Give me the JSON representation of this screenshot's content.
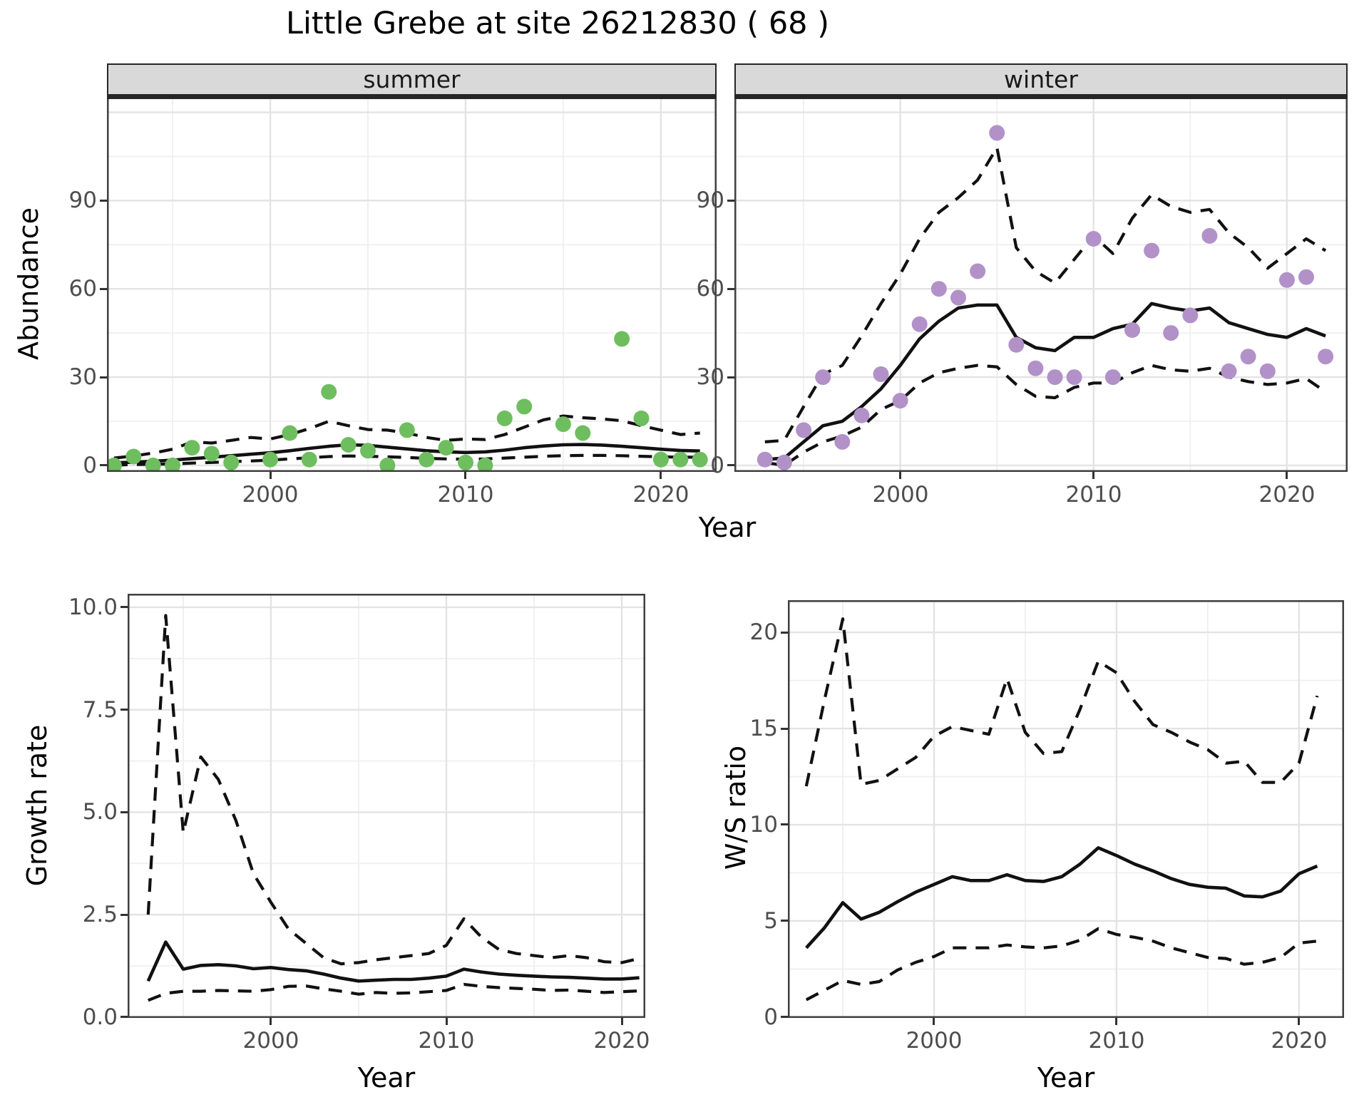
{
  "title": "Little Grebe at site 26212830 ( 68 )",
  "colors": {
    "summer_point": "#6EBE5F",
    "winter_point": "#B291C8",
    "line": "#111111",
    "grid_major": "#E3E3E3",
    "grid_minor": "#EFEFEF",
    "strip_bg": "#D9D9D9",
    "tick_text": "#4D4D4D"
  },
  "chart_data": [
    {
      "id": "abundance-summer",
      "type": "scatter",
      "facet": "summer",
      "xlabel": "Year",
      "ylabel": "Abundance",
      "xlim": [
        1991.64,
        2022.85
      ],
      "ylim": [
        -2.2,
        125.7
      ],
      "x_ticks": [
        {
          "v": 2000,
          "label": "2000"
        },
        {
          "v": 2010,
          "label": "2010"
        },
        {
          "v": 2020,
          "label": "2020"
        }
      ],
      "x_minor": [
        1995,
        2005,
        2015
      ],
      "y_ticks": [
        {
          "v": 0,
          "label": "0"
        },
        {
          "v": 30,
          "label": "30"
        },
        {
          "v": 60,
          "label": "60"
        },
        {
          "v": 90,
          "label": "90"
        }
      ],
      "y_minor": [
        15,
        45,
        75,
        105
      ],
      "y_grid_extra": [
        120
      ],
      "points": {
        "years": [
          1992,
          1993,
          1994,
          1995,
          1996,
          1997,
          1998,
          2000,
          2001,
          2002,
          2003,
          2004,
          2005,
          2006,
          2007,
          2008,
          2009,
          2010,
          2011,
          2012,
          2013,
          2015,
          2016,
          2018,
          2019,
          2020,
          2021,
          2022
        ],
        "values": [
          0,
          3,
          0,
          0,
          6,
          4,
          1,
          2,
          11,
          2,
          25,
          7,
          5,
          0,
          12,
          2,
          6,
          1,
          0,
          16,
          20,
          14,
          11,
          43,
          16,
          2,
          2,
          2
        ]
      },
      "fit": {
        "years": [
          1992,
          1993,
          1994,
          1995,
          1996,
          1997,
          1998,
          1999,
          2000,
          2001,
          2002,
          2003,
          2004,
          2005,
          2006,
          2007,
          2008,
          2009,
          2010,
          2011,
          2012,
          2013,
          2014,
          2015,
          2016,
          2017,
          2018,
          2019,
          2020,
          2021,
          2022
        ],
        "values": [
          0.9,
          1.1,
          1.4,
          1.8,
          2.3,
          2.8,
          3.3,
          3.8,
          4.3,
          5.0,
          5.8,
          6.5,
          7.0,
          6.8,
          6.2,
          5.6,
          5.0,
          4.6,
          4.4,
          4.6,
          5.2,
          6.0,
          6.6,
          7.0,
          7.1,
          6.9,
          6.5,
          6.0,
          5.5,
          5.1,
          4.9
        ]
      },
      "upper": {
        "years": [
          1992,
          1993,
          1994,
          1995,
          1996,
          1997,
          1998,
          1999,
          2000,
          2001,
          2002,
          2003,
          2004,
          2005,
          2006,
          2007,
          2008,
          2009,
          2010,
          2011,
          2012,
          2013,
          2014,
          2015,
          2016,
          2017,
          2018,
          2019,
          2020,
          2021,
          2022
        ],
        "values": [
          2.5,
          3.2,
          4.2,
          5.5,
          8.0,
          7.6,
          8.5,
          9.5,
          9.0,
          10.5,
          12.5,
          15.0,
          13.5,
          12.2,
          12.0,
          11.0,
          9.5,
          8.5,
          9.0,
          8.8,
          10.5,
          13.0,
          15.5,
          16.8,
          16.2,
          15.8,
          15.2,
          13.5,
          12.0,
          10.5,
          11.0
        ]
      },
      "lower": {
        "years": [
          1992,
          1993,
          1994,
          1995,
          1996,
          1997,
          1998,
          1999,
          2000,
          2001,
          2002,
          2003,
          2004,
          2005,
          2006,
          2007,
          2008,
          2009,
          2010,
          2011,
          2012,
          2013,
          2014,
          2015,
          2016,
          2017,
          2018,
          2019,
          2020,
          2021,
          2022
        ],
        "values": [
          0.1,
          0.3,
          0.4,
          0.5,
          0.8,
          1.0,
          1.3,
          1.5,
          1.8,
          2.2,
          2.6,
          3.0,
          3.2,
          3.1,
          2.9,
          2.7,
          2.4,
          2.2,
          2.1,
          2.2,
          2.5,
          2.8,
          3.1,
          3.3,
          3.4,
          3.4,
          3.3,
          3.1,
          2.9,
          2.8,
          2.8
        ]
      },
      "point_color_key": "summer_point"
    },
    {
      "id": "abundance-winter",
      "type": "scatter",
      "facet": "winter",
      "xlabel": "Year",
      "ylabel": "Abundance",
      "xlim": [
        1991.42,
        2023.14
      ],
      "ylim": [
        -2.2,
        125.7
      ],
      "x_ticks": [
        {
          "v": 2000,
          "label": "2000"
        },
        {
          "v": 2010,
          "label": "2010"
        },
        {
          "v": 2020,
          "label": "2020"
        }
      ],
      "x_minor": [
        1995,
        2005,
        2015
      ],
      "y_ticks": [
        {
          "v": 0,
          "label": "0"
        },
        {
          "v": 30,
          "label": "30"
        },
        {
          "v": 60,
          "label": "60"
        },
        {
          "v": 90,
          "label": "90"
        }
      ],
      "y_minor": [
        15,
        45,
        75,
        105
      ],
      "y_grid_extra": [
        120
      ],
      "points": {
        "years": [
          1993,
          1994,
          1995,
          1996,
          1997,
          1998,
          1999,
          2000,
          2001,
          2002,
          2003,
          2004,
          2005,
          2006,
          2007,
          2008,
          2009,
          2010,
          2011,
          2012,
          2013,
          2014,
          2015,
          2016,
          2017,
          2018,
          2019,
          2020,
          2021,
          2022
        ],
        "values": [
          2,
          1,
          12,
          30,
          8,
          17,
          31,
          22,
          48,
          60,
          57,
          66,
          113,
          41,
          33,
          30,
          30,
          77,
          30,
          46,
          73,
          45,
          51,
          78,
          32,
          37,
          32,
          63,
          64,
          37
        ]
      },
      "fit": {
        "years": [
          1993,
          1994,
          1995,
          1996,
          1997,
          1998,
          1999,
          2000,
          2001,
          2002,
          2003,
          2004,
          2005,
          2006,
          2007,
          2008,
          2009,
          2010,
          2011,
          2012,
          2013,
          2014,
          2015,
          2016,
          2017,
          2018,
          2019,
          2020,
          2021,
          2022
        ],
        "values": [
          2,
          2.5,
          8,
          13.5,
          15,
          20,
          26,
          34,
          43,
          49,
          53.5,
          54.5,
          54.5,
          43.5,
          40,
          39,
          43.5,
          43.5,
          46.5,
          48,
          55,
          53.5,
          52.5,
          53.5,
          48.5,
          46.5,
          44.5,
          43.5,
          46.5,
          44
        ]
      },
      "upper": {
        "years": [
          1993,
          1994,
          1995,
          1996,
          1997,
          1998,
          1999,
          2000,
          2001,
          2002,
          2003,
          2004,
          2005,
          2006,
          2007,
          2008,
          2009,
          2010,
          2011,
          2012,
          2013,
          2014,
          2015,
          2016,
          2017,
          2018,
          2019,
          2020,
          2021,
          2022
        ],
        "values": [
          8,
          8.5,
          20,
          31,
          34,
          44,
          55,
          65,
          77,
          86,
          91,
          97,
          108,
          74,
          66,
          62,
          70,
          78,
          72,
          84,
          92,
          88,
          86,
          87,
          79,
          74,
          67,
          72,
          77,
          73
        ]
      },
      "lower": {
        "years": [
          1993,
          1994,
          1995,
          1996,
          1997,
          1998,
          1999,
          2000,
          2001,
          2002,
          2003,
          2004,
          2005,
          2006,
          2007,
          2008,
          2009,
          2010,
          2011,
          2012,
          2013,
          2014,
          2015,
          2016,
          2017,
          2018,
          2019,
          2020,
          2021,
          2022
        ],
        "values": [
          1,
          0,
          4.5,
          8,
          10,
          13,
          19,
          22,
          28,
          31.5,
          33,
          34,
          33.5,
          27.5,
          23.5,
          23,
          26.5,
          28,
          28,
          31.5,
          34,
          32.5,
          32,
          33,
          30,
          28.5,
          27.5,
          28,
          29.5,
          25
        ]
      },
      "point_color_key": "winter_point"
    },
    {
      "id": "growth-rate",
      "type": "line",
      "facet": null,
      "xlabel": "Year",
      "ylabel": "Growth rate",
      "xlim": [
        1991.83,
        2021.34
      ],
      "ylim": [
        -0.02,
        10.33
      ],
      "x_ticks": [
        {
          "v": 2000,
          "label": "2000"
        },
        {
          "v": 2010,
          "label": "2010"
        },
        {
          "v": 2020,
          "label": "2020"
        }
      ],
      "x_minor": [
        1995,
        2005,
        2015
      ],
      "y_ticks": [
        {
          "v": 0,
          "label": "0.0"
        },
        {
          "v": 2.5,
          "label": "2.5"
        },
        {
          "v": 5,
          "label": "5.0"
        },
        {
          "v": 7.5,
          "label": "7.5"
        },
        {
          "v": 10,
          "label": "10.0"
        }
      ],
      "y_minor": [
        1.25,
        3.75,
        6.25,
        8.75
      ],
      "y_grid_extra": [],
      "points": null,
      "fit": {
        "years": [
          1993,
          1994,
          1995,
          1996,
          1997,
          1998,
          1999,
          2000,
          2001,
          2002,
          2003,
          2004,
          2005,
          2006,
          2007,
          2008,
          2009,
          2010,
          2011,
          2012,
          2013,
          2014,
          2015,
          2016,
          2017,
          2018,
          2019,
          2020,
          2021
        ],
        "values": [
          0.88,
          1.83,
          1.17,
          1.26,
          1.28,
          1.25,
          1.18,
          1.21,
          1.16,
          1.13,
          1.05,
          0.95,
          0.88,
          0.9,
          0.92,
          0.92,
          0.95,
          1.0,
          1.17,
          1.1,
          1.05,
          1.02,
          1.0,
          0.98,
          0.97,
          0.95,
          0.93,
          0.93,
          0.96
        ]
      },
      "upper": {
        "years": [
          1993,
          1994,
          1995,
          1996,
          1997,
          1998,
          1999,
          2000,
          2001,
          2002,
          2003,
          2004,
          2005,
          2006,
          2007,
          2008,
          2009,
          2010,
          2011,
          2012,
          2013,
          2014,
          2015,
          2016,
          2017,
          2018,
          2019,
          2020,
          2021
        ],
        "values": [
          2.5,
          9.8,
          4.5,
          6.35,
          5.8,
          4.8,
          3.5,
          2.8,
          2.15,
          1.8,
          1.45,
          1.3,
          1.33,
          1.4,
          1.45,
          1.5,
          1.55,
          1.75,
          2.4,
          1.95,
          1.65,
          1.55,
          1.5,
          1.45,
          1.5,
          1.45,
          1.35,
          1.33,
          1.43
        ]
      },
      "lower": {
        "years": [
          1993,
          1994,
          1995,
          1996,
          1997,
          1998,
          1999,
          2000,
          2001,
          2002,
          2003,
          2004,
          2005,
          2006,
          2007,
          2008,
          2009,
          2010,
          2011,
          2012,
          2013,
          2014,
          2015,
          2016,
          2017,
          2018,
          2019,
          2020,
          2021
        ],
        "values": [
          0.41,
          0.58,
          0.63,
          0.63,
          0.65,
          0.64,
          0.63,
          0.67,
          0.75,
          0.76,
          0.69,
          0.63,
          0.56,
          0.6,
          0.58,
          0.59,
          0.62,
          0.65,
          0.8,
          0.75,
          0.72,
          0.7,
          0.68,
          0.65,
          0.66,
          0.63,
          0.6,
          0.62,
          0.64
        ]
      },
      "point_color_key": null
    },
    {
      "id": "ws-ratio",
      "type": "line",
      "facet": null,
      "xlabel": "Year",
      "ylabel": "W/S ratio",
      "xlim": [
        1991.99,
        2022.47
      ],
      "ylim": [
        -0.04,
        21.67
      ],
      "x_ticks": [
        {
          "v": 2000,
          "label": "2000"
        },
        {
          "v": 2010,
          "label": "2010"
        },
        {
          "v": 2020,
          "label": "2020"
        }
      ],
      "x_minor": [
        1995,
        2005,
        2015
      ],
      "y_ticks": [
        {
          "v": 0,
          "label": "0"
        },
        {
          "v": 5,
          "label": "5"
        },
        {
          "v": 10,
          "label": "10"
        },
        {
          "v": 15,
          "label": "15"
        },
        {
          "v": 20,
          "label": "20"
        }
      ],
      "y_minor": [
        2.5,
        7.5,
        12.5,
        17.5
      ],
      "y_grid_extra": [],
      "points": null,
      "fit": {
        "years": [
          1993,
          1994,
          1995,
          1996,
          1997,
          1998,
          1999,
          2000,
          2001,
          2002,
          2003,
          2004,
          2005,
          2006,
          2007,
          2008,
          2009,
          2010,
          2011,
          2012,
          2013,
          2014,
          2015,
          2016,
          2017,
          2018,
          2019,
          2020,
          2021
        ],
        "values": [
          3.6,
          4.65,
          5.95,
          5.1,
          5.45,
          6.0,
          6.5,
          6.9,
          7.3,
          7.1,
          7.1,
          7.4,
          7.1,
          7.05,
          7.3,
          7.95,
          8.8,
          8.4,
          7.95,
          7.6,
          7.2,
          6.9,
          6.75,
          6.7,
          6.3,
          6.25,
          6.55,
          7.45,
          7.85
        ]
      },
      "upper": {
        "years": [
          1993,
          1994,
          1995,
          1996,
          1997,
          1998,
          1999,
          2000,
          2001,
          2002,
          2003,
          2004,
          2005,
          2006,
          2007,
          2008,
          2009,
          2010,
          2011,
          2012,
          2013,
          2014,
          2015,
          2016,
          2017,
          2018,
          2019,
          2020,
          2021
        ],
        "values": [
          12.0,
          16.5,
          20.7,
          12.1,
          12.3,
          12.9,
          13.5,
          14.6,
          15.1,
          14.9,
          14.7,
          17.6,
          14.8,
          13.7,
          13.8,
          16.0,
          18.5,
          17.9,
          16.4,
          15.2,
          14.8,
          14.3,
          13.9,
          13.2,
          13.3,
          12.2,
          12.2,
          13.2,
          16.7
        ]
      },
      "lower": {
        "years": [
          1993,
          1994,
          1995,
          1996,
          1997,
          1998,
          1999,
          2000,
          2001,
          2002,
          2003,
          2004,
          2005,
          2006,
          2007,
          2008,
          2009,
          2010,
          2011,
          2012,
          2013,
          2014,
          2015,
          2016,
          2017,
          2018,
          2019,
          2020,
          2021
        ],
        "values": [
          0.9,
          1.4,
          1.9,
          1.7,
          1.85,
          2.45,
          2.85,
          3.15,
          3.6,
          3.6,
          3.6,
          3.75,
          3.65,
          3.6,
          3.7,
          4.0,
          4.6,
          4.3,
          4.15,
          3.95,
          3.6,
          3.35,
          3.1,
          3.05,
          2.75,
          2.85,
          3.1,
          3.85,
          3.95
        ]
      },
      "point_color_key": null
    }
  ]
}
